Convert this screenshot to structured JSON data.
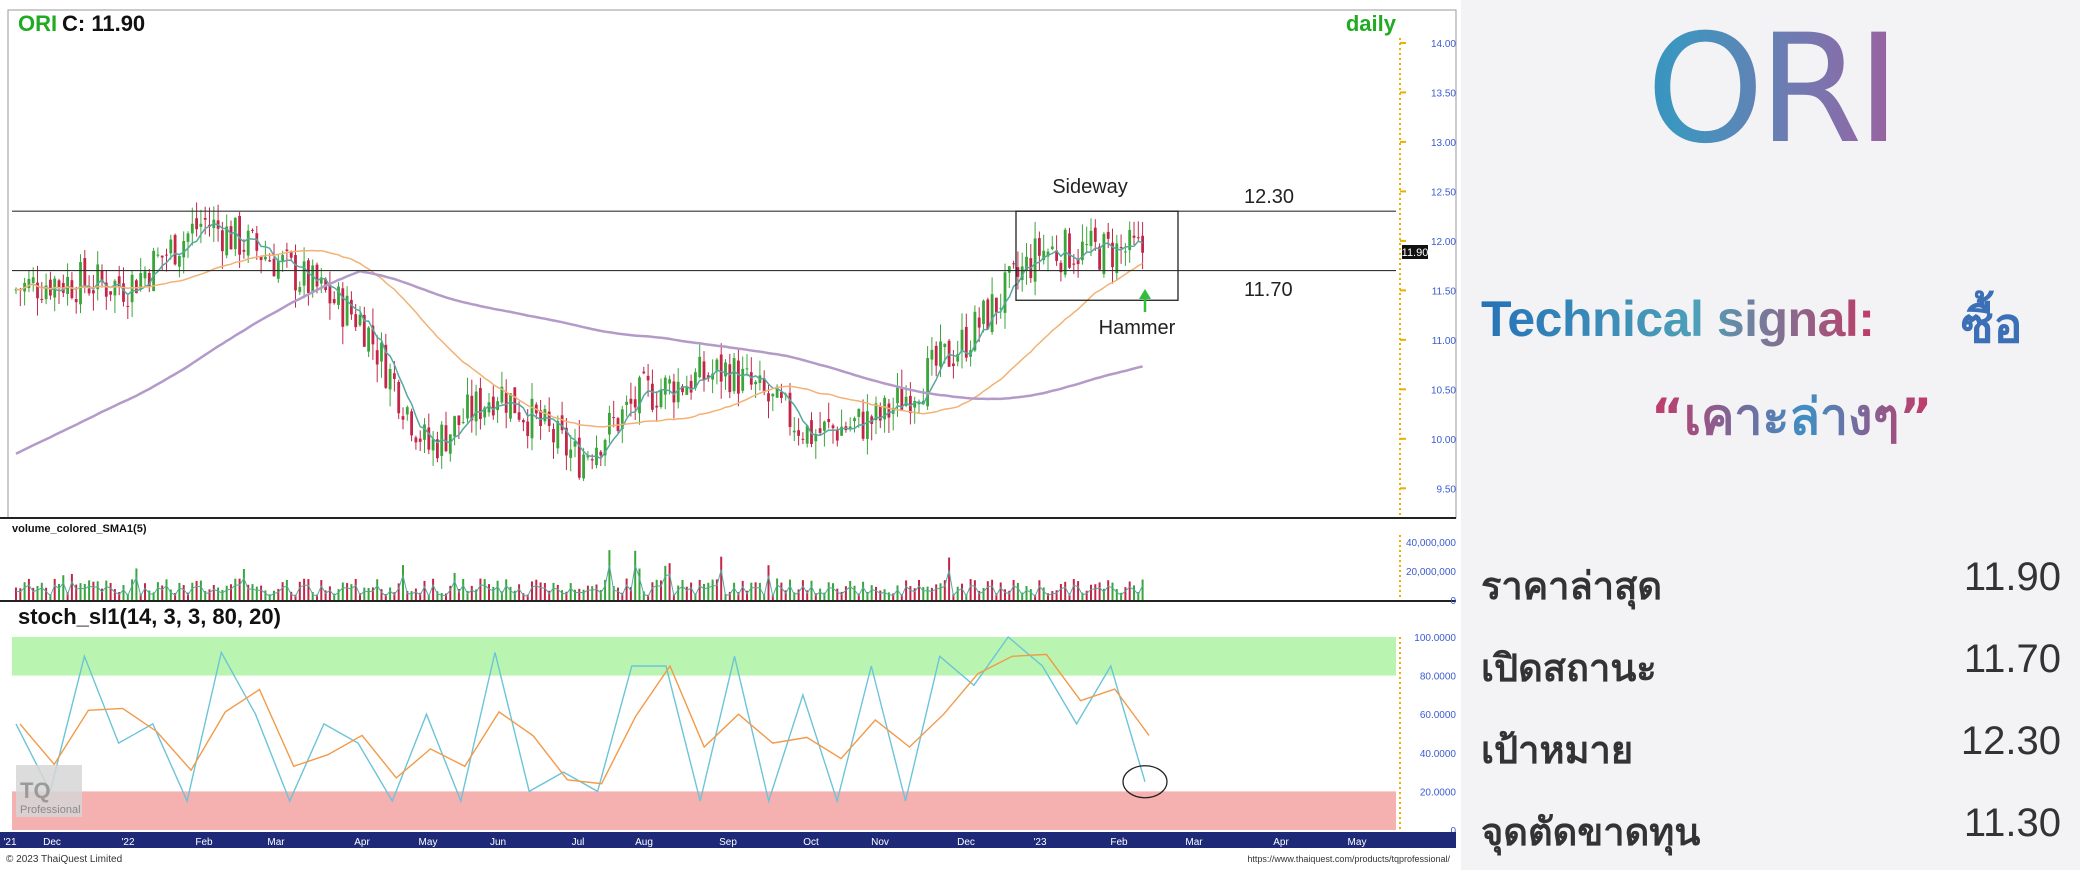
{
  "header": {
    "ticker": "ORI",
    "close_label": "C: 11.90",
    "timeframe": "daily",
    "volume_panel_label": "volume_colored_SMA1(5)",
    "stoch_panel_label": "stoch_sl1(14, 3, 3, 80, 20)",
    "footer_left": "© 2023 ThaiQuest Limited",
    "footer_right": "https://www.thaiquest.com/products/tqprofessional/",
    "watermark_top": "TQ",
    "watermark_bottom": "Professional"
  },
  "annotations": {
    "sideway_label": "Sideway",
    "hammer_label": "Hammer",
    "resistance_label": "12.30",
    "support_label": "11.70",
    "last_price_tag": "11.90"
  },
  "side_panel": {
    "ticker": "ORI",
    "signal_label": "Technical signal:",
    "signal_value": "ซื้อ",
    "signal_quote": "“เคาะล่างๆ”",
    "stats": [
      {
        "label": "ราคาล่าสุด",
        "value": "11.90"
      },
      {
        "label": "เปิดสถานะ",
        "value": "11.70"
      },
      {
        "label": "เป้าหมาย",
        "value": "12.30"
      },
      {
        "label": "จุดตัดขาดทุน",
        "value": "11.30"
      }
    ]
  },
  "chart_data": [
    {
      "type": "candlestick",
      "title": "ORI C: 11.90",
      "timeframe": "daily",
      "x_ticks": [
        "'21",
        "Dec",
        "'22",
        "Feb",
        "Mar",
        "Apr",
        "May",
        "Jun",
        "Jul",
        "Aug",
        "Sep",
        "Oct",
        "Nov",
        "Dec",
        "'23",
        "Feb",
        "Mar",
        "Apr",
        "May"
      ],
      "y_ticks": [
        "14.00",
        "13.50",
        "13.00",
        "12.50",
        "12.00",
        "11.50",
        "11.00",
        "10.50",
        "10.00",
        "9.50"
      ],
      "ylim": [
        9.2,
        14.05
      ],
      "horizontal_lines": [
        12.3,
        11.7
      ],
      "sideway_box": {
        "x_from": "Dec",
        "x_to": "Feb",
        "price_low": 11.4,
        "price_high": 12.3
      },
      "approx_closes_by_month": [
        {
          "x": "'21",
          "close": 11.5
        },
        {
          "x": "Dec",
          "close": 11.6
        },
        {
          "x": "'22",
          "close": 11.55
        },
        {
          "x": "Feb",
          "close": 12.2
        },
        {
          "x": "Mar",
          "close": 11.8
        },
        {
          "x": "Apr",
          "close": 11.2
        },
        {
          "x": "May",
          "close": 9.9
        },
        {
          "x": "Jun",
          "close": 10.5
        },
        {
          "x": "Jul",
          "close": 9.8
        },
        {
          "x": "Aug",
          "close": 10.45
        },
        {
          "x": "Sep",
          "close": 10.7
        },
        {
          "x": "Oct",
          "close": 10.05
        },
        {
          "x": "Nov",
          "close": 10.2
        },
        {
          "x": "Dec",
          "close": 11.0
        },
        {
          "x": "'23",
          "close": 11.9
        },
        {
          "x": "Feb",
          "close": 11.9
        }
      ]
    },
    {
      "type": "bar",
      "title": "volume_colored_SMA1(5)",
      "y_ticks": [
        "40,000,000",
        "20,000,000",
        "0"
      ],
      "ylim": [
        0,
        45000000
      ]
    },
    {
      "type": "line",
      "title": "stoc_sl1(14, 3, 3, 80, 20)",
      "y_ticks": [
        "100.0000",
        "80.0000",
        "60.0000",
        "40.0000",
        "20.0000",
        "0"
      ],
      "ylim": [
        0,
        100
      ],
      "overbought": 80,
      "oversold": 20,
      "series": [
        {
          "values": [
            55,
            20,
            90,
            45,
            55,
            15,
            92,
            60,
            15,
            55,
            45,
            15,
            60,
            15,
            92,
            20,
            30,
            20,
            85,
            85,
            15,
            90,
            15,
            70,
            15,
            85,
            15,
            90,
            75,
            100,
            85,
            55,
            85,
            25
          ]
        }
      ]
    }
  ],
  "colors": {
    "ma_short": "#55a8a0",
    "ma_mid": "#f2b273",
    "ma_long": "#b49ac8",
    "candle_up": "#3aa63a",
    "candle_down": "#c2274a",
    "overbought_band": "#b9f5b0",
    "oversold_band": "#f5b0b0",
    "axis_strip": "#1e2a78",
    "y_label": "#3a5bd0"
  }
}
